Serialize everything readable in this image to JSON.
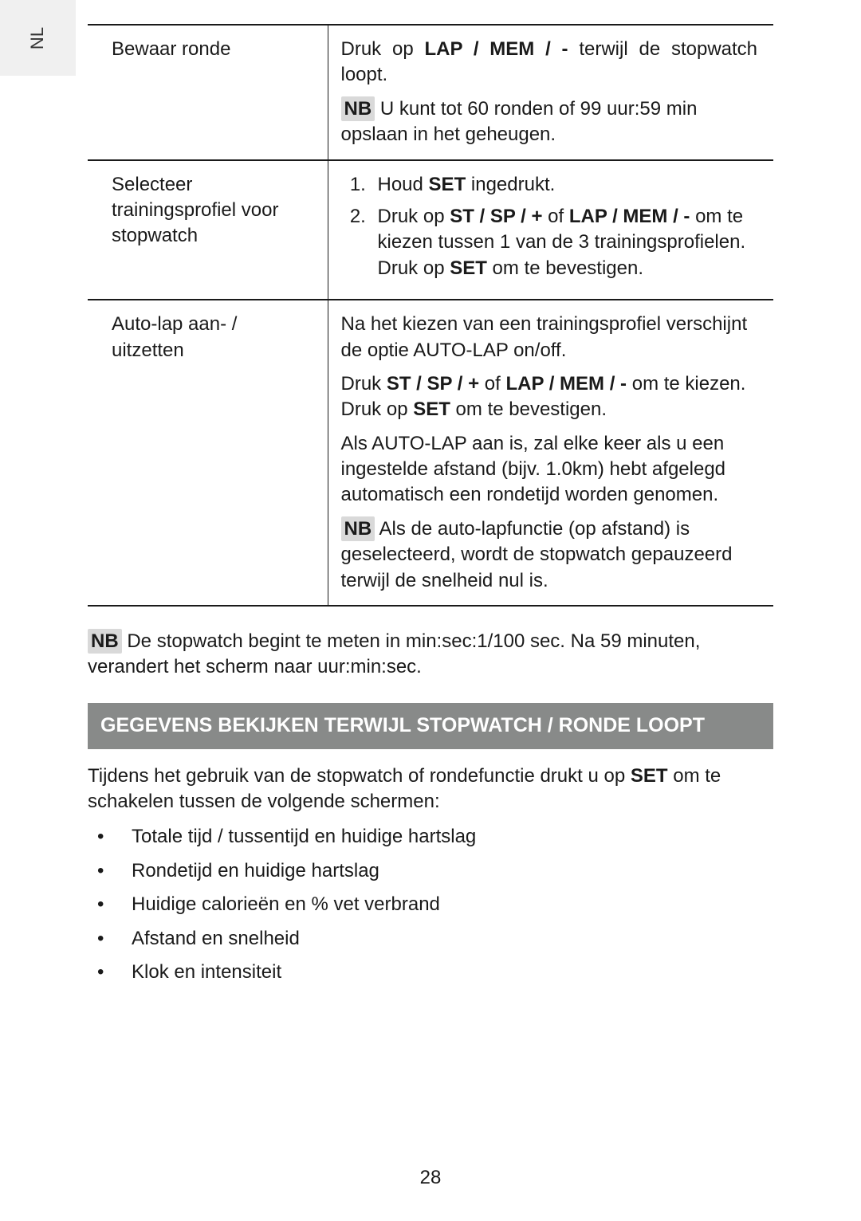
{
  "sideTab": "NL",
  "colors": {
    "sideTabBg": "#f0f0f0",
    "textColor": "#1a1a1a",
    "headerBg": "#888a89",
    "headerText": "#ffffff",
    "nbBadgeBg": "#d9d9d9",
    "borderColor": "#1a1a1a"
  },
  "typography": {
    "bodyFontSize": 24,
    "headerFontSize": 25,
    "sideTabFontSize": 22
  },
  "table": {
    "rows": [
      {
        "left": "Bewaar ronde",
        "right": {
          "p1_pre": "Druk op ",
          "p1_bold": "LAP / MEM / -",
          "p1_post": " terwijl de stopwatch loopt.",
          "nb": "NB",
          "nb_text": " U kunt tot 60 ronden of 99 uur:59 min opslaan in het geheugen."
        }
      },
      {
        "left": "Selecteer trainingsprofiel voor stopwatch",
        "right": {
          "li1_pre": "Houd ",
          "li1_bold": "SET",
          "li1_post": " ingedrukt.",
          "li2_pre": "Druk op ",
          "li2_bold1": "ST / SP / +",
          "li2_mid": " of ",
          "li2_bold2": "LAP / MEM / -",
          "li2_post1": " om te kiezen tussen 1 van de 3 trainingsprofielen. Druk op ",
          "li2_bold3": "SET",
          "li2_post2": " om te bevestigen."
        }
      },
      {
        "left": "Auto-lap aan- / uitzetten",
        "right": {
          "p1": "Na het kiezen van een trainingsprofiel verschijnt de optie AUTO-LAP on/off.",
          "p2_pre": "Druk ",
          "p2_bold1": "ST / SP / +",
          "p2_mid1": " of ",
          "p2_bold2": "LAP / MEM / -",
          "p2_mid2": " om te kiezen. Druk op ",
          "p2_bold3": "SET",
          "p2_post": " om te bevestigen.",
          "p3": "Als AUTO-LAP aan is, zal elke keer als u een ingestelde afstand (bijv. 1.0km) hebt afgelegd automatisch een rondetijd worden genomen.",
          "nb": "NB",
          "nb_text": " Als de auto-lapfunctie (op afstand) is geselecteerd, wordt de stopwatch gepauzeerd terwijl de snelheid nul is."
        }
      }
    ]
  },
  "note": {
    "nb": "NB",
    "text": " De stopwatch begint te meten in min:sec:1/100 sec. Na 59 minuten, verandert het scherm naar uur:min:sec."
  },
  "sectionHeader": "GEGEVENS BEKIJKEN TERWIJL STOPWATCH / RONDE LOOPT",
  "bodyPara": {
    "pre": "Tijdens het gebruik van de stopwatch of rondefunctie drukt u op ",
    "bold": "SET",
    "post": " om te schakelen tussen de volgende schermen:"
  },
  "bullets": [
    "Totale tijd / tussentijd en huidige hartslag",
    "Rondetijd en huidige hartslag",
    "Huidige calorieën en % vet verbrand",
    "Afstand en snelheid",
    "Klok en intensiteit"
  ],
  "pageNumber": "28"
}
